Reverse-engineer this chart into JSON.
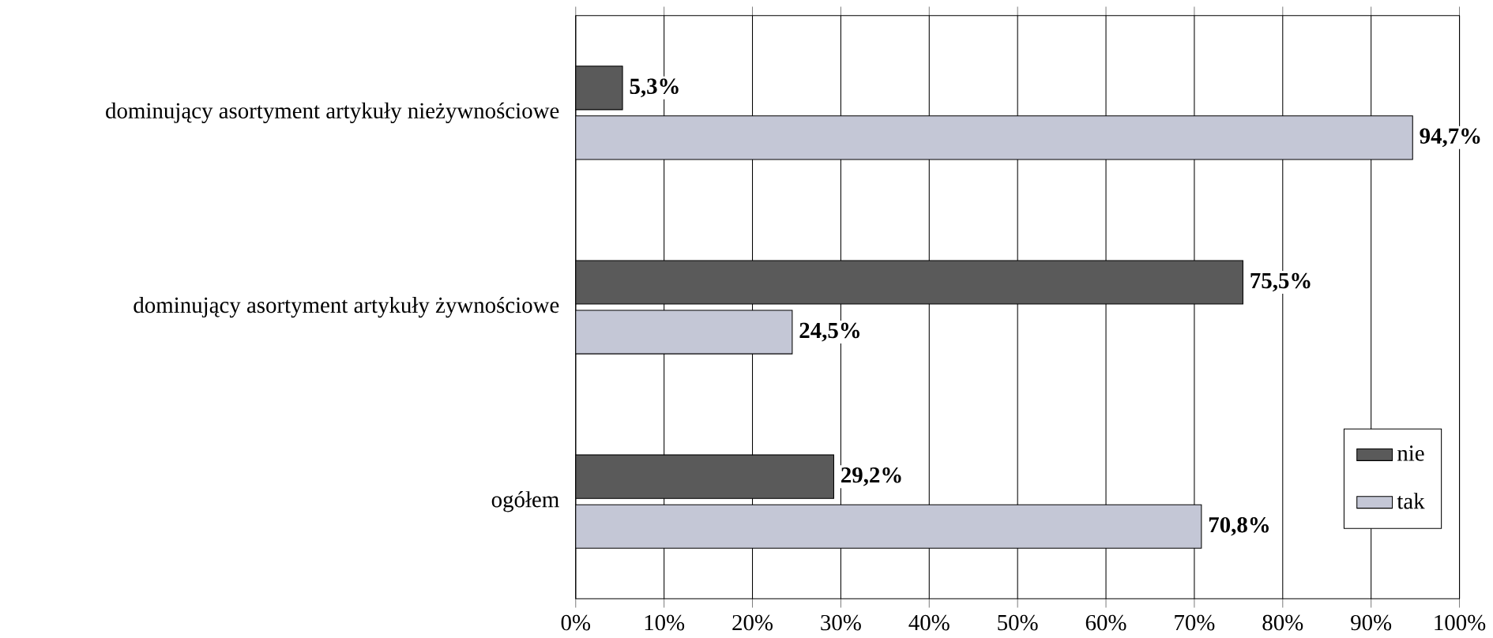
{
  "chart_data": {
    "type": "bar",
    "orientation": "horizontal",
    "categories": [
      "dominujący asortyment artykuły nieżywnościowe",
      "dominujący asortyment artykuły żywnościowe",
      "ogółem"
    ],
    "series": [
      {
        "name": "nie",
        "color": "#5a5a5a",
        "values": [
          5.3,
          75.5,
          29.2
        ],
        "value_labels": [
          "5,3%",
          "75,5%",
          "29,2%"
        ]
      },
      {
        "name": "tak",
        "color": "#c4c7d6",
        "values": [
          94.7,
          24.5,
          70.8
        ],
        "value_labels": [
          "94,7%",
          "24,5%",
          "70,8%"
        ]
      }
    ],
    "xlim": [
      0,
      100
    ],
    "xticks": [
      {
        "value": 0,
        "label": "0%"
      },
      {
        "value": 10,
        "label": "10%"
      },
      {
        "value": 20,
        "label": "20%"
      },
      {
        "value": 30,
        "label": "30%"
      },
      {
        "value": 40,
        "label": "40%"
      },
      {
        "value": 50,
        "label": "50%"
      },
      {
        "value": 60,
        "label": "60%"
      },
      {
        "value": 70,
        "label": "70%"
      },
      {
        "value": 80,
        "label": "80%"
      },
      {
        "value": 90,
        "label": "90%"
      },
      {
        "value": 100,
        "label": "100%"
      }
    ],
    "grid": "x",
    "legend": "bottom right"
  }
}
